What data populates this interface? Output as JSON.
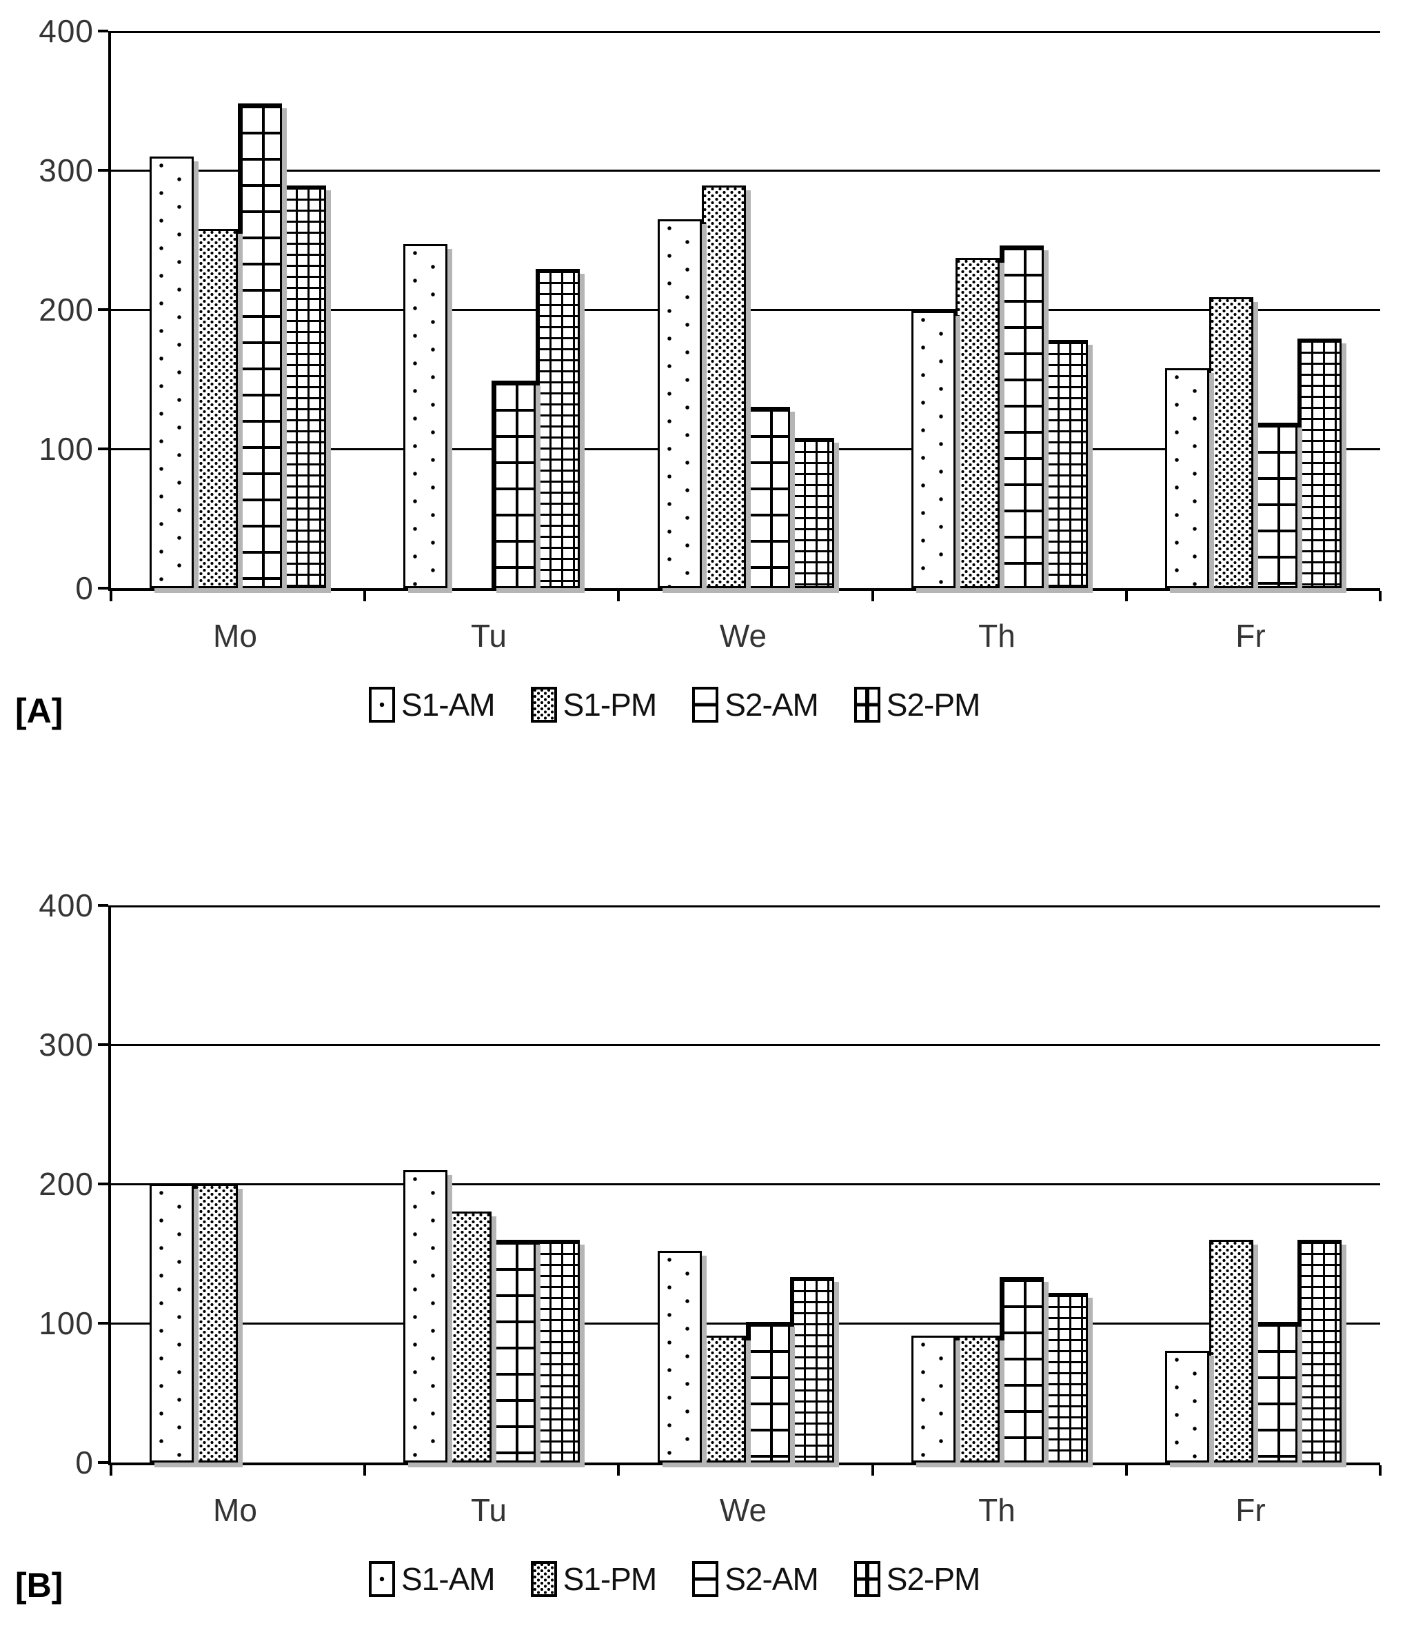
{
  "colors": {
    "ink": "#000000",
    "grid_line": "#000000",
    "bar_shadow": "#b5b5b5",
    "axis_text": "#343434"
  },
  "chart_data": [
    {
      "type": "bar",
      "panel_label": "[A]",
      "categories": [
        "Mo",
        "Tu",
        "We",
        "Th",
        "Fr"
      ],
      "series": [
        {
          "name": "S1-AM",
          "pattern": "dot-sparse",
          "values": [
            310,
            247,
            265,
            199,
            158
          ]
        },
        {
          "name": "S1-PM",
          "pattern": "dot-dense",
          "values": [
            258,
            0,
            289,
            237,
            209
          ]
        },
        {
          "name": "S2-AM",
          "pattern": "grid-large",
          "values": [
            348,
            149,
            130,
            246,
            119
          ]
        },
        {
          "name": "S2-PM",
          "pattern": "grid-fine",
          "values": [
            289,
            229,
            108,
            178,
            179
          ]
        }
      ],
      "ylim": [
        0,
        400
      ],
      "yticks": [
        0,
        100,
        200,
        300,
        400
      ],
      "ytick_labels": [
        "0",
        "100",
        "200",
        "300",
        "400"
      ],
      "grid": true,
      "legend_position": "bottom",
      "legend_labels": [
        "S1-AM",
        "S1-PM",
        "S2-AM",
        "S2-PM"
      ]
    },
    {
      "type": "bar",
      "panel_label": "[B]",
      "categories": [
        "Mo",
        "Tu",
        "We",
        "Th",
        "Fr"
      ],
      "series": [
        {
          "name": "S1-AM",
          "pattern": "dot-sparse",
          "values": [
            200,
            210,
            152,
            91,
            80
          ]
        },
        {
          "name": "S1-PM",
          "pattern": "dot-dense",
          "values": [
            200,
            180,
            91,
            91,
            160
          ]
        },
        {
          "name": "S2-AM",
          "pattern": "grid-large",
          "values": [
            0,
            160,
            101,
            133,
            101
          ]
        },
        {
          "name": "S2-PM",
          "pattern": "grid-fine",
          "values": [
            0,
            160,
            133,
            122,
            160
          ]
        }
      ],
      "ylim": [
        0,
        400
      ],
      "yticks": [
        0,
        100,
        200,
        300,
        400
      ],
      "ytick_labels": [
        "0",
        "100",
        "200",
        "300",
        "400"
      ],
      "grid": true,
      "legend_position": "bottom",
      "legend_labels": [
        "S1-AM",
        "S1-PM",
        "S2-AM",
        "S2-PM"
      ]
    }
  ]
}
